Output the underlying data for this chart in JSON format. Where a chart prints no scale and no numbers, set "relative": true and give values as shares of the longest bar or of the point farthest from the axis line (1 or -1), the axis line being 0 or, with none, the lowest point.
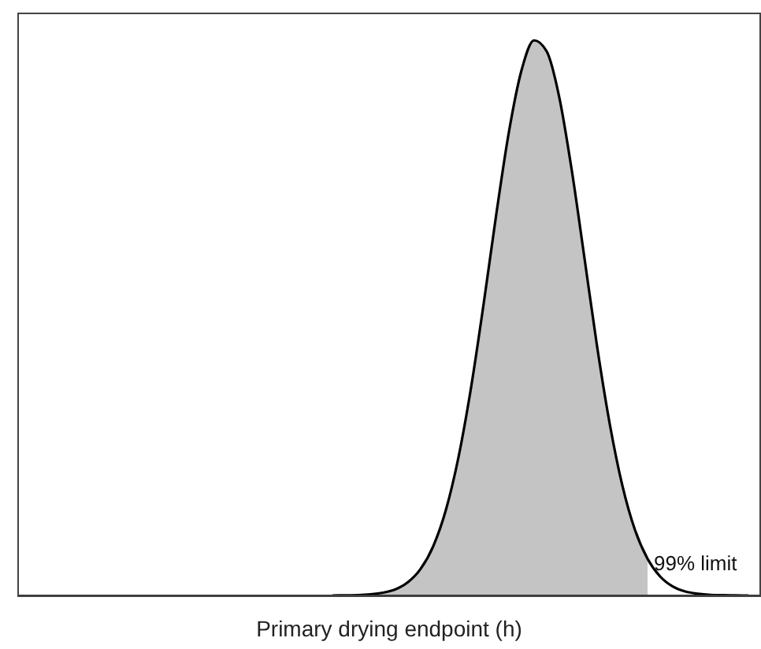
{
  "chart_data": {
    "type": "area",
    "relative": true,
    "xlabel": "Primary drying endpoint (h)",
    "annotations": [
      "99% limit"
    ],
    "legend": false,
    "categories": [
      null,
      null,
      null,
      null,
      null,
      null,
      null,
      null,
      null,
      null,
      null,
      null,
      null,
      null,
      null,
      null,
      null,
      null,
      null,
      null,
      null,
      null,
      null,
      null,
      null,
      null,
      null,
      null,
      null,
      null,
      null,
      null,
      null,
      null,
      null,
      null,
      null,
      null,
      null,
      null,
      null,
      null,
      null,
      null,
      null,
      null,
      null,
      null,
      null,
      null,
      null,
      null,
      null,
      null,
      null,
      null,
      null,
      null,
      null,
      null
    ],
    "series": [
      {
        "color": "#c4c4c4",
        "values": [
          null,
          null,
          null,
          null,
          null,
          null,
          null,
          null,
          null,
          null,
          null,
          null,
          null,
          null,
          null,
          null,
          null,
          null,
          null,
          null,
          null,
          null,
          null,
          null,
          null,
          0,
          0.0003,
          0.0007,
          0.002,
          0.005,
          0.011,
          0.024,
          0.048,
          0.089,
          0.154,
          0.249,
          0.375,
          0.526,
          0.687,
          0.835,
          0.946,
          1,
          0.98,
          0.897,
          0.764,
          0.607,
          0.448,
          0.309,
          0.198,
          0.118,
          0.066,
          null,
          null,
          null,
          null,
          null,
          null,
          null,
          null,
          null
        ]
      },
      {
        "type": "line",
        "color": "#000000",
        "values": [
          null,
          null,
          null,
          null,
          null,
          null,
          null,
          null,
          null,
          null,
          null,
          null,
          null,
          null,
          null,
          null,
          null,
          null,
          null,
          null,
          null,
          null,
          null,
          null,
          null,
          0,
          0.0003,
          0.0007,
          0.002,
          0.005,
          0.011,
          0.024,
          0.048,
          0.089,
          0.154,
          0.249,
          0.375,
          0.526,
          0.687,
          0.835,
          0.946,
          1,
          0.98,
          0.897,
          0.764,
          0.607,
          0.448,
          0.309,
          0.198,
          0.118,
          0.066,
          0.034,
          0.016,
          0.007,
          0.003,
          0.001,
          0.0004,
          0.0001,
          0,
          null
        ]
      }
    ]
  }
}
